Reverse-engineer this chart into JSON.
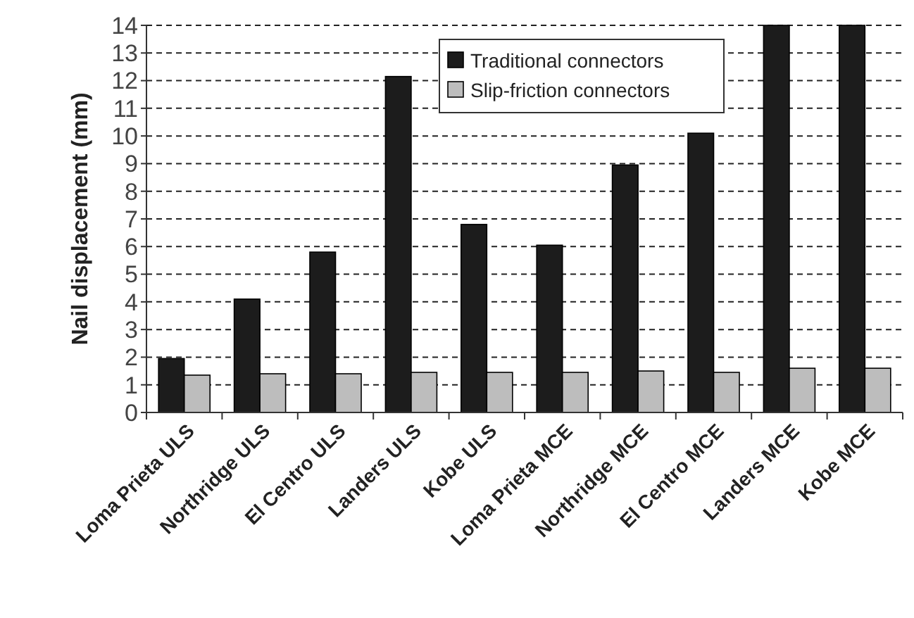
{
  "chart_data": {
    "type": "bar",
    "ylabel": "Nail displacement (mm)",
    "categories": [
      "Loma Prieta ULS",
      "Northridge ULS",
      "El Centro ULS",
      "Landers ULS",
      "Kobe ULS",
      "Loma Prieta MCE",
      "Northridge MCE",
      "El Centro MCE",
      "Landers MCE",
      "Kobe MCE"
    ],
    "series": [
      {
        "name": "Traditional connectors",
        "color": "#1c1c1c",
        "values": [
          1.95,
          4.1,
          5.8,
          12.15,
          6.8,
          6.05,
          8.95,
          10.1,
          14,
          14
        ]
      },
      {
        "name": "Slip-friction connectors",
        "color": "#bdbdbd",
        "values": [
          1.35,
          1.4,
          1.4,
          1.45,
          1.45,
          1.45,
          1.5,
          1.45,
          1.6,
          1.6
        ]
      }
    ],
    "ylim": [
      0,
      14
    ],
    "yticks": [
      0,
      1,
      2,
      3,
      4,
      5,
      6,
      7,
      8,
      9,
      10,
      11,
      12,
      13,
      14
    ],
    "grid": "y",
    "legend": "top"
  }
}
